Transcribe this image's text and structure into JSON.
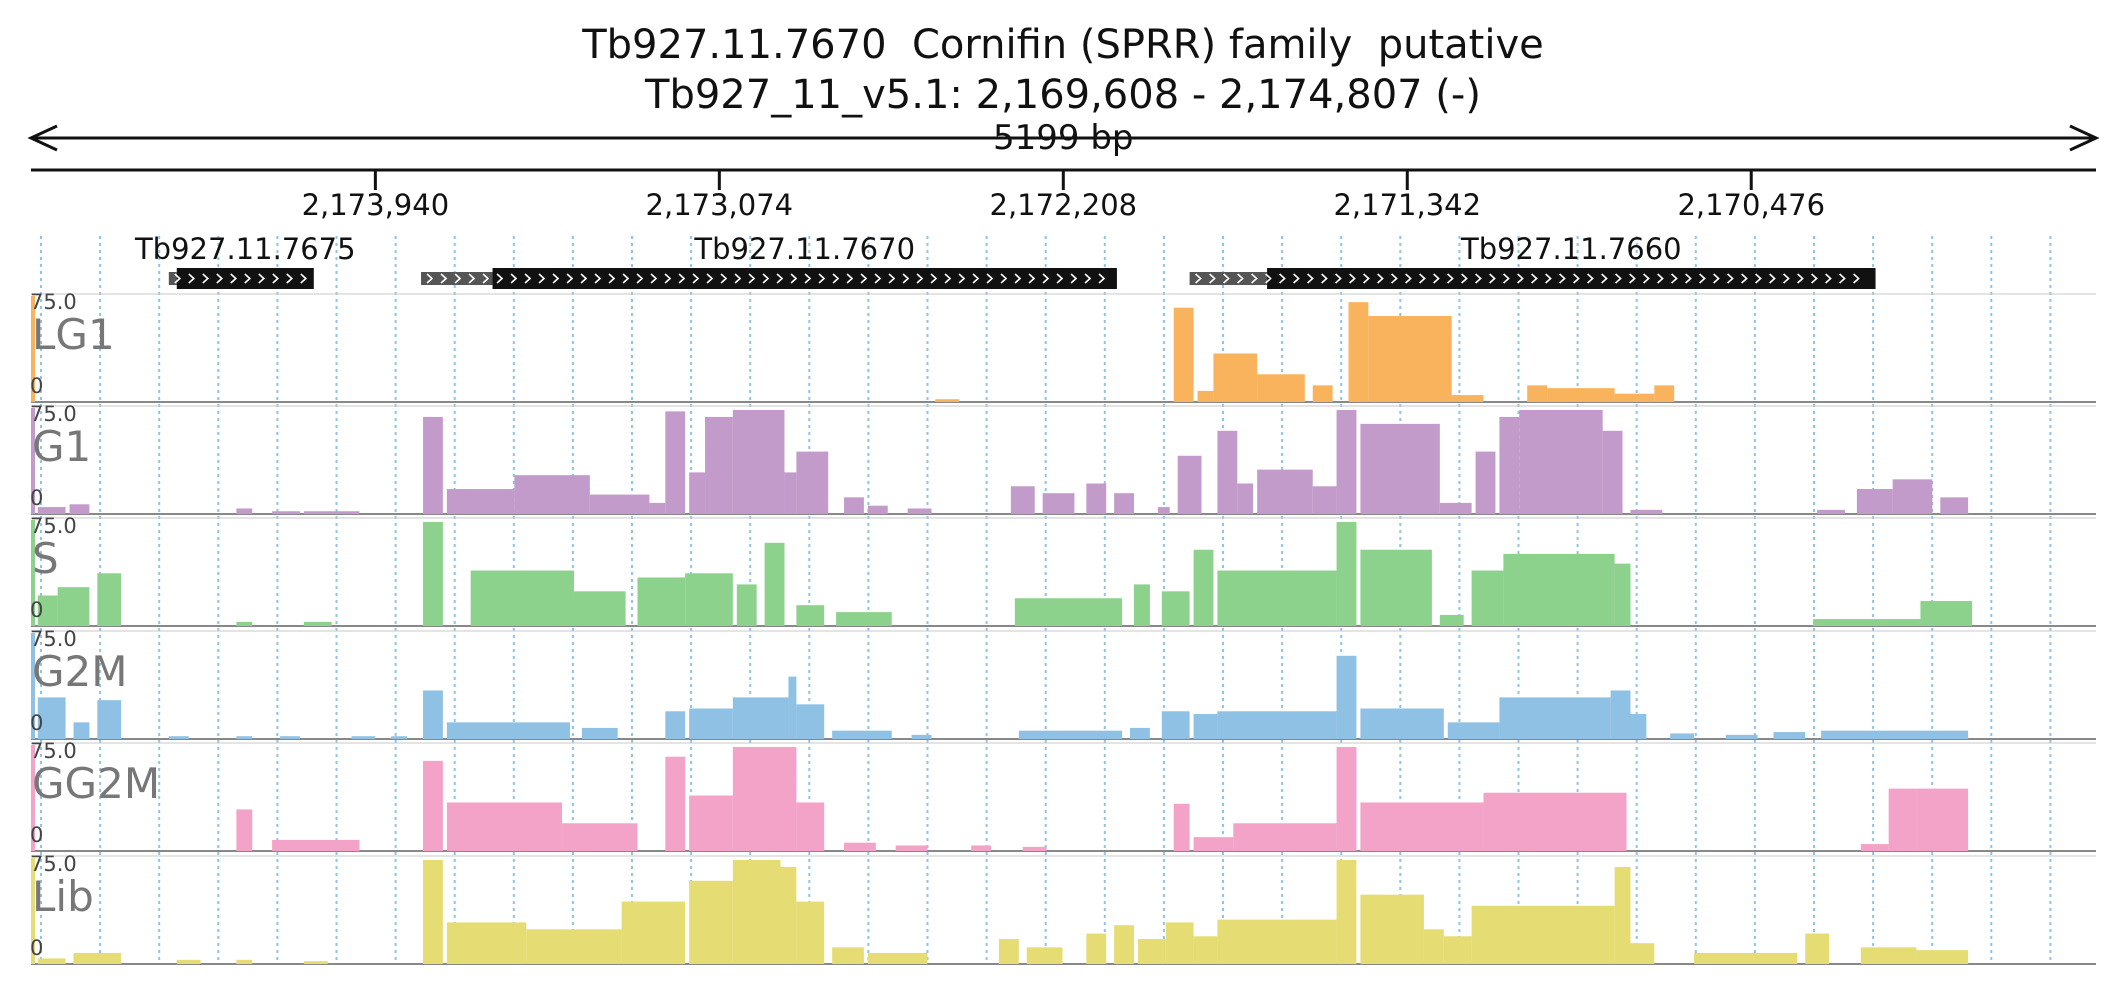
{
  "header": {
    "title": "Tb927.11.7670  Cornifin (SPRR) family  putative",
    "locus": "Tb927_11_v5.1: 2,169,608 - 2,174,807 (-)",
    "span": "5199 bp"
  },
  "ruler": {
    "ticks": [
      {
        "label": "2,173,940",
        "pos": 2173940
      },
      {
        "label": "2,173,074",
        "pos": 2173074
      },
      {
        "label": "2,172,208",
        "pos": 2172208
      },
      {
        "label": "2,171,342",
        "pos": 2171342
      },
      {
        "label": "2,170,476",
        "pos": 2170476
      }
    ],
    "start": 2174807,
    "end": 2169608
  },
  "genes": [
    {
      "name": "Tb927.11.7675",
      "utr_start": 2174460,
      "cds_start": 2174440,
      "cds_end": 2174095
    },
    {
      "name": "Tb927.11.7670",
      "utr_start": 2173825,
      "cds_start": 2173645,
      "cds_end": 2172073
    },
    {
      "name": "Tb927.11.7660",
      "utr_start": 2171890,
      "cds_start": 2171695,
      "cds_end": 2170163
    }
  ],
  "tracks": [
    {
      "name": "LG1",
      "max": "75.0",
      "min": "0",
      "color": "#f9b35c",
      "ymax": 75,
      "segments": [
        [
          2172530,
          2172470,
          2
        ],
        [
          2171930,
          2171880,
          68
        ],
        [
          2171870,
          2171830,
          8
        ],
        [
          2171830,
          2171720,
          35
        ],
        [
          2171720,
          2171600,
          20
        ],
        [
          2171580,
          2171530,
          12
        ],
        [
          2171490,
          2171440,
          72
        ],
        [
          2171440,
          2171230,
          62
        ],
        [
          2171230,
          2171150,
          5
        ],
        [
          2171040,
          2170990,
          12
        ],
        [
          2170990,
          2170820,
          10
        ],
        [
          2170820,
          2170720,
          6
        ],
        [
          2170720,
          2170670,
          12
        ]
      ]
    },
    {
      "name": "G1",
      "max": "75.0",
      "min": "0",
      "color": "#c39bcb",
      "ymax": 75,
      "segments": [
        [
          2174790,
          2174720,
          5
        ],
        [
          2174710,
          2174660,
          7
        ],
        [
          2174290,
          2174250,
          4
        ],
        [
          2174200,
          2174130,
          2
        ],
        [
          2174120,
          2173980,
          2
        ],
        [
          2173820,
          2173770,
          70
        ],
        [
          2173760,
          2173590,
          18
        ],
        [
          2173590,
          2173400,
          28
        ],
        [
          2173400,
          2173250,
          14
        ],
        [
          2173250,
          2173210,
          8
        ],
        [
          2173210,
          2173160,
          74
        ],
        [
          2173150,
          2173110,
          30
        ],
        [
          2173110,
          2173040,
          70
        ],
        [
          2173040,
          2172910,
          78
        ],
        [
          2172910,
          2172880,
          30
        ],
        [
          2172880,
          2172800,
          45
        ],
        [
          2172760,
          2172710,
          12
        ],
        [
          2172700,
          2172650,
          6
        ],
        [
          2172600,
          2172540,
          4
        ],
        [
          2172340,
          2172280,
          20
        ],
        [
          2172260,
          2172180,
          15
        ],
        [
          2172150,
          2172100,
          22
        ],
        [
          2172080,
          2172030,
          15
        ],
        [
          2171970,
          2171940,
          5
        ],
        [
          2171920,
          2171860,
          42
        ],
        [
          2171820,
          2171770,
          60
        ],
        [
          2171770,
          2171730,
          22
        ],
        [
          2171720,
          2171580,
          32
        ],
        [
          2171580,
          2171520,
          20
        ],
        [
          2171520,
          2171470,
          88
        ],
        [
          2171460,
          2171260,
          65
        ],
        [
          2171260,
          2171180,
          8
        ],
        [
          2171170,
          2171120,
          45
        ],
        [
          2171110,
          2171060,
          70
        ],
        [
          2171060,
          2170850,
          75
        ],
        [
          2170850,
          2170800,
          60
        ],
        [
          2170780,
          2170700,
          3
        ],
        [
          2170310,
          2170240,
          3
        ],
        [
          2170210,
          2170120,
          18
        ],
        [
          2170120,
          2170020,
          25
        ],
        [
          2170000,
          2169930,
          12
        ]
      ]
    },
    {
      "name": "S",
      "max": "75.0",
      "min": "0",
      "color": "#8cd18c",
      "ymax": 75,
      "segments": [
        [
          2174790,
          2174740,
          22
        ],
        [
          2174740,
          2174660,
          28
        ],
        [
          2174640,
          2174580,
          38
        ],
        [
          2174290,
          2174250,
          3
        ],
        [
          2174120,
          2174050,
          3
        ],
        [
          2173820,
          2173770,
          75
        ],
        [
          2173700,
          2173440,
          40
        ],
        [
          2173440,
          2173310,
          25
        ],
        [
          2173280,
          2173160,
          35
        ],
        [
          2173160,
          2173040,
          38
        ],
        [
          2173030,
          2172980,
          30
        ],
        [
          2172960,
          2172910,
          60
        ],
        [
          2172880,
          2172810,
          15
        ],
        [
          2172780,
          2172640,
          10
        ],
        [
          2172330,
          2172060,
          20
        ],
        [
          2172030,
          2171990,
          30
        ],
        [
          2171960,
          2171890,
          25
        ],
        [
          2171880,
          2171830,
          55
        ],
        [
          2171820,
          2171520,
          40
        ],
        [
          2171520,
          2171470,
          85
        ],
        [
          2171460,
          2171280,
          55
        ],
        [
          2171260,
          2171200,
          8
        ],
        [
          2171180,
          2171100,
          40
        ],
        [
          2171100,
          2170820,
          52
        ],
        [
          2170820,
          2170780,
          45
        ],
        [
          2170320,
          2170050,
          5
        ],
        [
          2170050,
          2169920,
          18
        ]
      ]
    },
    {
      "name": "G2M",
      "max": "75.0",
      "min": "0",
      "color": "#8fc1e4",
      "ymax": 75,
      "segments": [
        [
          2174790,
          2174720,
          30
        ],
        [
          2174700,
          2174660,
          12
        ],
        [
          2174640,
          2174580,
          28
        ],
        [
          2174460,
          2174410,
          2
        ],
        [
          2174290,
          2174250,
          2
        ],
        [
          2174180,
          2174130,
          2
        ],
        [
          2174000,
          2173940,
          2
        ],
        [
          2173900,
          2173860,
          2
        ],
        [
          2173820,
          2173770,
          35
        ],
        [
          2173760,
          2173450,
          12
        ],
        [
          2173420,
          2173330,
          8
        ],
        [
          2173210,
          2173160,
          20
        ],
        [
          2173150,
          2173040,
          22
        ],
        [
          2173040,
          2172900,
          30
        ],
        [
          2172900,
          2172880,
          45
        ],
        [
          2172880,
          2172810,
          25
        ],
        [
          2172790,
          2172640,
          6
        ],
        [
          2172590,
          2172540,
          3
        ],
        [
          2172320,
          2172060,
          6
        ],
        [
          2172040,
          2171990,
          8
        ],
        [
          2171960,
          2171890,
          20
        ],
        [
          2171880,
          2171820,
          18
        ],
        [
          2171820,
          2171520,
          20
        ],
        [
          2171520,
          2171470,
          60
        ],
        [
          2171460,
          2171250,
          22
        ],
        [
          2171240,
          2171110,
          12
        ],
        [
          2171110,
          2170830,
          30
        ],
        [
          2170830,
          2170780,
          35
        ],
        [
          2170780,
          2170740,
          18
        ],
        [
          2170680,
          2170620,
          4
        ],
        [
          2170540,
          2170460,
          3
        ],
        [
          2170420,
          2170340,
          5
        ],
        [
          2170300,
          2169930,
          6
        ]
      ]
    },
    {
      "name": "GG2M",
      "max": "75.0",
      "min": "0",
      "color": "#f4a3c8",
      "ymax": 75,
      "segments": [
        [
          2174290,
          2174250,
          30
        ],
        [
          2174200,
          2173980,
          8
        ],
        [
          2173820,
          2173770,
          65
        ],
        [
          2173760,
          2173470,
          35
        ],
        [
          2173470,
          2173280,
          20
        ],
        [
          2173210,
          2173160,
          68
        ],
        [
          2173150,
          2173040,
          40
        ],
        [
          2173040,
          2172880,
          75
        ],
        [
          2172880,
          2172810,
          35
        ],
        [
          2172760,
          2172680,
          6
        ],
        [
          2172630,
          2172550,
          4
        ],
        [
          2172440,
          2172390,
          4
        ],
        [
          2172310,
          2172250,
          3
        ],
        [
          2171930,
          2171890,
          34
        ],
        [
          2171880,
          2171780,
          10
        ],
        [
          2171780,
          2171520,
          20
        ],
        [
          2171520,
          2171470,
          75
        ],
        [
          2171460,
          2171150,
          35
        ],
        [
          2171150,
          2170790,
          42
        ],
        [
          2170200,
          2170130,
          5
        ],
        [
          2170130,
          2170060,
          45
        ],
        [
          2170060,
          2169930,
          45
        ]
      ]
    },
    {
      "name": "Lib",
      "max": "75.0",
      "min": "0",
      "color": "#e6dc74",
      "ymax": 75,
      "segments": [
        [
          2174790,
          2174720,
          4
        ],
        [
          2174700,
          2174580,
          8
        ],
        [
          2174440,
          2174380,
          3
        ],
        [
          2174290,
          2174250,
          3
        ],
        [
          2174120,
          2174060,
          2
        ],
        [
          2173820,
          2173770,
          95
        ],
        [
          2173760,
          2173560,
          30
        ],
        [
          2173560,
          2173320,
          25
        ],
        [
          2173320,
          2173160,
          45
        ],
        [
          2173150,
          2173040,
          60
        ],
        [
          2173040,
          2172920,
          85
        ],
        [
          2172920,
          2172880,
          70
        ],
        [
          2172880,
          2172810,
          45
        ],
        [
          2172790,
          2172710,
          12
        ],
        [
          2172700,
          2172550,
          8
        ],
        [
          2172370,
          2172320,
          18
        ],
        [
          2172300,
          2172210,
          12
        ],
        [
          2172150,
          2172100,
          22
        ],
        [
          2172080,
          2172030,
          28
        ],
        [
          2172020,
          2171950,
          18
        ],
        [
          2171950,
          2171880,
          30
        ],
        [
          2171880,
          2171820,
          20
        ],
        [
          2171820,
          2171520,
          32
        ],
        [
          2171520,
          2171470,
          95
        ],
        [
          2171460,
          2171300,
          50
        ],
        [
          2171300,
          2171250,
          25
        ],
        [
          2171250,
          2171180,
          20
        ],
        [
          2171180,
          2170820,
          42
        ],
        [
          2170820,
          2170780,
          70
        ],
        [
          2170780,
          2170720,
          15
        ],
        [
          2170620,
          2170360,
          8
        ],
        [
          2170340,
          2170280,
          22
        ],
        [
          2170200,
          2170060,
          12
        ],
        [
          2170060,
          2169930,
          10
        ]
      ]
    }
  ]
}
